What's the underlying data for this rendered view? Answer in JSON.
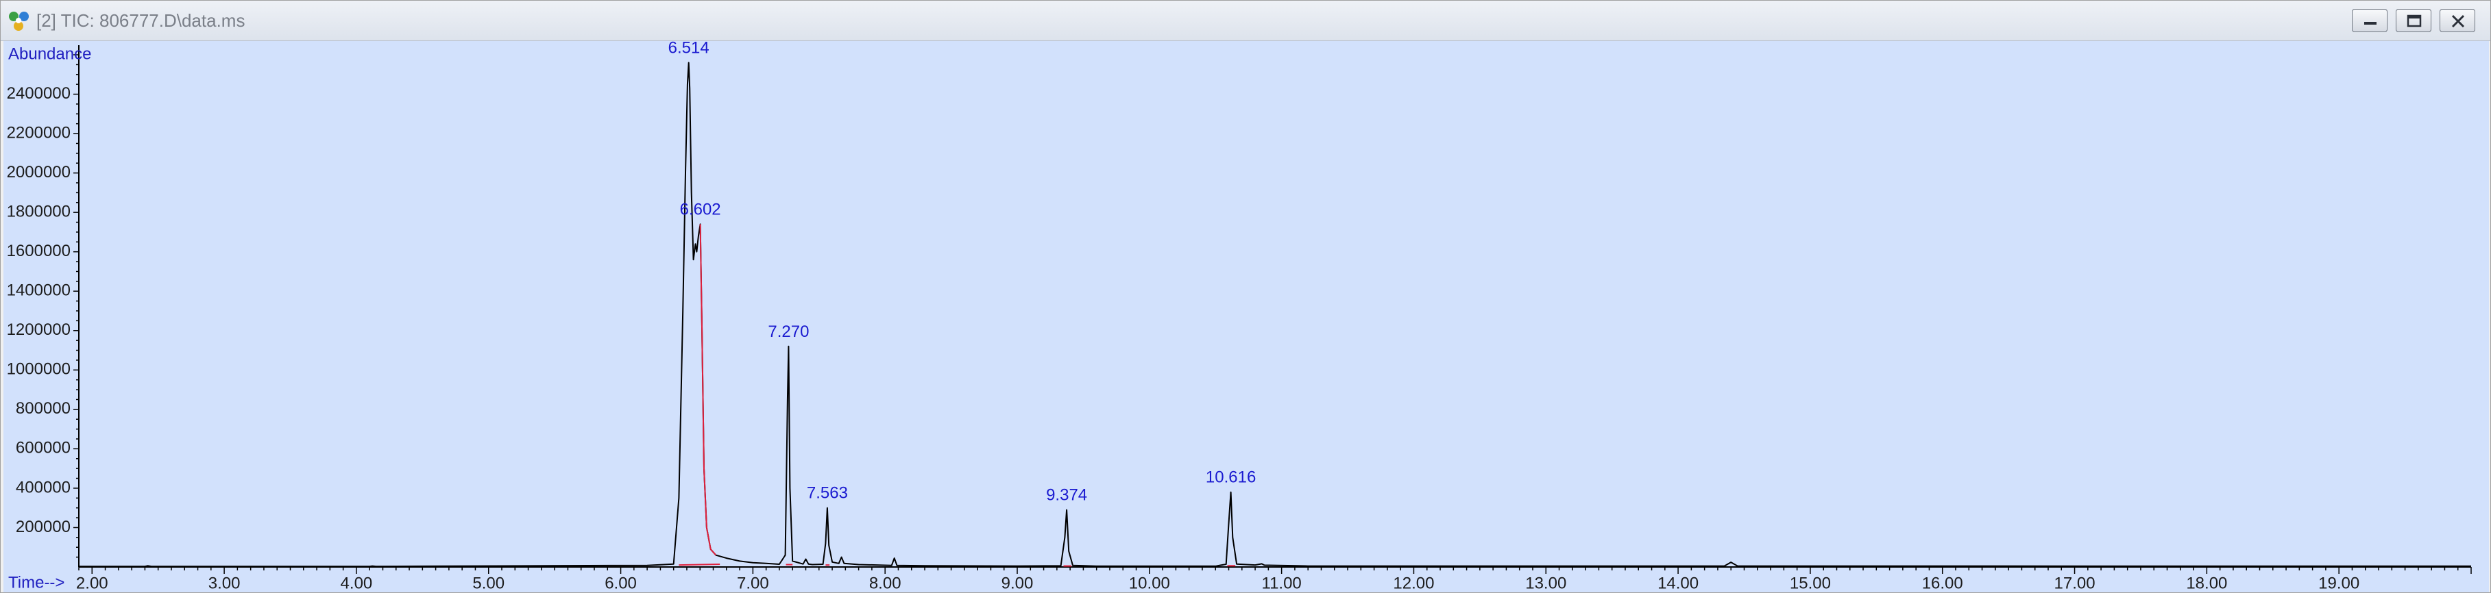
{
  "window": {
    "title": "[2] TIC: 806777.D\\data.ms",
    "icons": {
      "app": "chromatogram-app-icon",
      "minimize": "minimize-icon",
      "maximize": "maximize-icon",
      "close": "close-icon"
    }
  },
  "colors": {
    "background": "#d2e1fc",
    "trace": "#000000",
    "integration": "#e0203c",
    "labels": "#1a1ad0"
  },
  "chart_data": {
    "type": "line",
    "title": "",
    "ylabel": "Abundance",
    "xlabel": "Time-->",
    "xlim": [
      1.9,
      20.0
    ],
    "ylim": [
      0,
      2600000
    ],
    "grid": false,
    "x_ticks": [
      "2.00",
      "3.00",
      "4.00",
      "5.00",
      "6.00",
      "7.00",
      "8.00",
      "9.00",
      "10.00",
      "11.00",
      "12.00",
      "13.00",
      "14.00",
      "15.00",
      "16.00",
      "17.00",
      "18.00",
      "19.00"
    ],
    "y_ticks": [
      "200000",
      "400000",
      "600000",
      "800000",
      "1000000",
      "1200000",
      "1400000",
      "1600000",
      "1800000",
      "2000000",
      "2200000",
      "2400000"
    ],
    "peaks": [
      {
        "label": "6.514",
        "x": 6.514,
        "y": 2560000
      },
      {
        "label": "6.602",
        "x": 6.602,
        "y": 1740000
      },
      {
        "label": "7.270",
        "x": 7.27,
        "y": 1120000
      },
      {
        "label": "7.563",
        "x": 7.563,
        "y": 300000
      },
      {
        "label": "9.374",
        "x": 9.374,
        "y": 290000
      },
      {
        "label": "10.616",
        "x": 10.616,
        "y": 380000
      }
    ],
    "series": [
      {
        "x": [
          1.9,
          2.4,
          2.42,
          2.45,
          4.1,
          4.12,
          4.15,
          6.2,
          6.4,
          6.44,
          6.47,
          6.49,
          6.505,
          6.514,
          6.522,
          6.535,
          6.55,
          6.565,
          6.575,
          6.588,
          6.602,
          6.615,
          6.63,
          6.65,
          6.68,
          6.72,
          6.8,
          6.9,
          7.0,
          7.1,
          7.2,
          7.245,
          7.262,
          7.27,
          7.28,
          7.3,
          7.38,
          7.4,
          7.42,
          7.45,
          7.53,
          7.55,
          7.563,
          7.575,
          7.6,
          7.65,
          7.67,
          7.69,
          7.8,
          8.05,
          8.07,
          8.09,
          8.3,
          9.0,
          9.33,
          9.36,
          9.374,
          9.39,
          9.42,
          9.6,
          10.5,
          10.58,
          10.6,
          10.616,
          10.63,
          10.66,
          10.8,
          10.85,
          10.87,
          11.2,
          14.1,
          14.35,
          14.4,
          14.45,
          20.0
        ],
        "y": [
          3000,
          3000,
          6000,
          3000,
          3000,
          5000,
          3000,
          8000,
          15000,
          350000,
          1300000,
          2000000,
          2450000,
          2560000,
          2430000,
          1900000,
          1560000,
          1640000,
          1600000,
          1680000,
          1740000,
          1200000,
          500000,
          200000,
          90000,
          60000,
          45000,
          30000,
          22000,
          18000,
          14000,
          60000,
          850000,
          1120000,
          400000,
          30000,
          15000,
          40000,
          15000,
          12000,
          14000,
          120000,
          300000,
          110000,
          25000,
          18000,
          50000,
          18000,
          12000,
          8000,
          45000,
          8000,
          6000,
          5000,
          6000,
          150000,
          290000,
          80000,
          8000,
          4000,
          4000,
          14000,
          220000,
          380000,
          150000,
          15000,
          10000,
          16000,
          9000,
          5000,
          5000,
          5000,
          24000,
          5000,
          4000
        ]
      }
    ],
    "integration_baselines": [
      {
        "x": [
          6.44,
          6.75
        ],
        "y": [
          10000,
          14000
        ]
      },
      {
        "x": [
          7.25,
          7.3
        ],
        "y": [
          12000,
          12000
        ]
      },
      {
        "x": [
          7.55,
          7.58
        ],
        "y": [
          10000,
          10000
        ]
      },
      {
        "x": [
          9.35,
          9.41
        ],
        "y": [
          5000,
          5000
        ]
      },
      {
        "x": [
          10.59,
          10.65
        ],
        "y": [
          6000,
          6000
        ]
      }
    ]
  }
}
